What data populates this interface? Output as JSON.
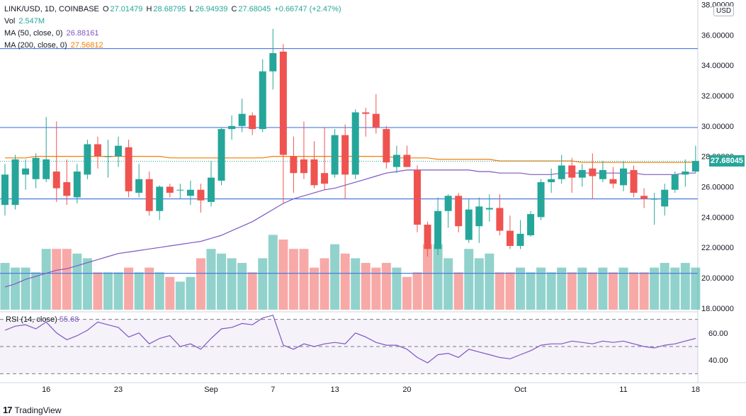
{
  "header": {
    "pair": "LINK/USD, 1D, COINBASE",
    "open_label": "O",
    "open": "27.01479",
    "high_label": "H",
    "high": "28.68795",
    "low_label": "L",
    "low": "26.94939",
    "close_label": "C",
    "close": "27.68045",
    "change": "+0.66747 (+2.47%)",
    "vol_label": "Vol",
    "vol": "2.547M",
    "ma50_label": "MA (50, close, 0)",
    "ma50": "26.88161",
    "ma200_label": "MA (200, close, 0)",
    "ma200": "27.56812"
  },
  "currency_button": "USD",
  "last_price_tag": "27.68045",
  "rsi_label": "RSI (14, close)",
  "rsi_value": "55.68",
  "logo_text": "TradingView",
  "colors": {
    "up": "#26a69a",
    "down": "#ef5350",
    "ma50": "#7e57c2",
    "ma200": "#f57c00",
    "hline": "#4c7be0",
    "rsi": "#7e57c2"
  },
  "chart_data": {
    "type": "candlestick",
    "title": "LINK/USD, 1D, COINBASE",
    "price_axis": {
      "min": 18,
      "max": 38,
      "ticks": [
        "38.00000",
        "36.00000",
        "34.00000",
        "32.00000",
        "30.00000",
        "28.00000",
        "26.00000",
        "24.00000",
        "22.00000",
        "20.00000",
        "18.00000"
      ]
    },
    "time_axis": {
      "ticks": [
        {
          "label": "16",
          "index": 4
        },
        {
          "label": "23",
          "index": 11
        },
        {
          "label": "Sep",
          "index": 20
        },
        {
          "label": "7",
          "index": 26
        },
        {
          "label": "13",
          "index": 32
        },
        {
          "label": "20",
          "index": 39
        },
        {
          "label": "Oct",
          "index": 50
        },
        {
          "label": "11",
          "index": 60
        },
        {
          "label": "18",
          "index": 67
        }
      ]
    },
    "horizontal_lines": [
      35.1,
      29.9,
      25.2,
      20.3
    ],
    "candles": [
      {
        "o": 24.8,
        "h": 27.5,
        "l": 24.1,
        "c": 26.8
      },
      {
        "o": 24.8,
        "h": 28.1,
        "l": 24.5,
        "c": 27.8
      },
      {
        "o": 26.8,
        "h": 27.8,
        "l": 25.8,
        "c": 27.2
      },
      {
        "o": 26.5,
        "h": 28.2,
        "l": 25.9,
        "c": 27.9
      },
      {
        "o": 26.5,
        "h": 30.6,
        "l": 26.3,
        "c": 27.8
      },
      {
        "o": 27.0,
        "h": 30.3,
        "l": 25.0,
        "c": 25.9
      },
      {
        "o": 26.3,
        "h": 27.8,
        "l": 24.8,
        "c": 25.4
      },
      {
        "o": 25.3,
        "h": 27.5,
        "l": 24.9,
        "c": 27.0
      },
      {
        "o": 26.8,
        "h": 29.1,
        "l": 26.5,
        "c": 28.8
      },
      {
        "o": 28.8,
        "h": 29.3,
        "l": 27.2,
        "c": 28.0
      },
      {
        "o": 28.0,
        "h": 29.1,
        "l": 26.6,
        "c": 28.0
      },
      {
        "o": 28.0,
        "h": 29.3,
        "l": 27.3,
        "c": 28.7
      },
      {
        "o": 28.6,
        "h": 29.1,
        "l": 25.3,
        "c": 25.7
      },
      {
        "o": 25.6,
        "h": 27.5,
        "l": 25.3,
        "c": 26.5
      },
      {
        "o": 26.5,
        "h": 27.0,
        "l": 24.1,
        "c": 24.4
      },
      {
        "o": 24.4,
        "h": 26.1,
        "l": 23.8,
        "c": 26.0
      },
      {
        "o": 26.0,
        "h": 26.2,
        "l": 25.3,
        "c": 25.6
      },
      {
        "o": 25.8,
        "h": 26.2,
        "l": 25.2,
        "c": 25.8
      },
      {
        "o": 25.4,
        "h": 26.4,
        "l": 24.8,
        "c": 25.8
      },
      {
        "o": 25.8,
        "h": 26.2,
        "l": 24.3,
        "c": 25.1
      },
      {
        "o": 25.0,
        "h": 27.7,
        "l": 24.7,
        "c": 26.6
      },
      {
        "o": 26.4,
        "h": 29.9,
        "l": 26.1,
        "c": 29.8
      },
      {
        "o": 29.8,
        "h": 30.7,
        "l": 29.1,
        "c": 30.0
      },
      {
        "o": 30.0,
        "h": 31.8,
        "l": 29.6,
        "c": 30.8
      },
      {
        "o": 30.7,
        "h": 30.9,
        "l": 29.4,
        "c": 29.8
      },
      {
        "o": 29.8,
        "h": 34.4,
        "l": 29.6,
        "c": 33.6
      },
      {
        "o": 33.6,
        "h": 36.4,
        "l": 32.4,
        "c": 34.8
      },
      {
        "o": 34.9,
        "h": 35.4,
        "l": 24.9,
        "c": 28.1
      },
      {
        "o": 28.0,
        "h": 29.3,
        "l": 25.6,
        "c": 26.9
      },
      {
        "o": 27.8,
        "h": 30.3,
        "l": 26.5,
        "c": 26.9
      },
      {
        "o": 27.8,
        "h": 29.0,
        "l": 25.9,
        "c": 26.1
      },
      {
        "o": 26.9,
        "h": 29.9,
        "l": 25.8,
        "c": 26.2
      },
      {
        "o": 26.8,
        "h": 29.8,
        "l": 26.6,
        "c": 29.4
      },
      {
        "o": 29.4,
        "h": 30.1,
        "l": 25.2,
        "c": 26.8
      },
      {
        "o": 26.8,
        "h": 31.1,
        "l": 26.5,
        "c": 30.9
      },
      {
        "o": 30.9,
        "h": 31.2,
        "l": 29.3,
        "c": 30.8
      },
      {
        "o": 30.8,
        "h": 32.1,
        "l": 29.5,
        "c": 29.9
      },
      {
        "o": 29.8,
        "h": 30.0,
        "l": 27.2,
        "c": 27.6
      },
      {
        "o": 27.3,
        "h": 28.7,
        "l": 26.9,
        "c": 28.1
      },
      {
        "o": 28.1,
        "h": 28.7,
        "l": 27.3,
        "c": 27.3
      },
      {
        "o": 27.1,
        "h": 27.4,
        "l": 23.0,
        "c": 23.5
      },
      {
        "o": 23.5,
        "h": 23.7,
        "l": 21.4,
        "c": 21.9
      },
      {
        "o": 21.9,
        "h": 25.3,
        "l": 21.5,
        "c": 24.4
      },
      {
        "o": 24.4,
        "h": 25.5,
        "l": 23.3,
        "c": 25.4
      },
      {
        "o": 25.4,
        "h": 25.6,
        "l": 23.0,
        "c": 23.4
      },
      {
        "o": 22.5,
        "h": 25.2,
        "l": 22.3,
        "c": 24.5
      },
      {
        "o": 23.4,
        "h": 25.3,
        "l": 22.3,
        "c": 24.7
      },
      {
        "o": 24.5,
        "h": 25.5,
        "l": 23.7,
        "c": 24.6
      },
      {
        "o": 24.6,
        "h": 25.5,
        "l": 22.8,
        "c": 23.1
      },
      {
        "o": 23.1,
        "h": 24.1,
        "l": 21.9,
        "c": 22.1
      },
      {
        "o": 22.1,
        "h": 23.8,
        "l": 21.9,
        "c": 22.9
      },
      {
        "o": 22.8,
        "h": 24.4,
        "l": 22.7,
        "c": 24.2
      },
      {
        "o": 24.0,
        "h": 26.5,
        "l": 23.8,
        "c": 26.3
      },
      {
        "o": 26.3,
        "h": 27.2,
        "l": 25.6,
        "c": 26.5
      },
      {
        "o": 26.5,
        "h": 28.1,
        "l": 26.2,
        "c": 27.4
      },
      {
        "o": 27.4,
        "h": 27.9,
        "l": 25.6,
        "c": 26.6
      },
      {
        "o": 26.6,
        "h": 27.5,
        "l": 26.0,
        "c": 27.1
      },
      {
        "o": 27.2,
        "h": 28.2,
        "l": 25.2,
        "c": 26.7
      },
      {
        "o": 26.5,
        "h": 27.7,
        "l": 26.3,
        "c": 27.1
      },
      {
        "o": 26.5,
        "h": 27.3,
        "l": 25.9,
        "c": 26.2
      },
      {
        "o": 26.1,
        "h": 27.7,
        "l": 25.7,
        "c": 27.2
      },
      {
        "o": 27.1,
        "h": 27.4,
        "l": 25.3,
        "c": 25.6
      },
      {
        "o": 25.4,
        "h": 25.9,
        "l": 24.6,
        "c": 25.2
      },
      {
        "o": 25.2,
        "h": 25.6,
        "l": 23.5,
        "c": 25.2
      },
      {
        "o": 24.7,
        "h": 26.2,
        "l": 24.1,
        "c": 25.8
      },
      {
        "o": 25.8,
        "h": 27.0,
        "l": 25.6,
        "c": 26.8
      },
      {
        "o": 26.8,
        "h": 27.8,
        "l": 26.0,
        "c": 27.0
      },
      {
        "o": 27.0,
        "h": 28.7,
        "l": 26.9,
        "c": 27.7
      }
    ],
    "volume": [
      10,
      9,
      9,
      8,
      13,
      13,
      13,
      12,
      11,
      8,
      8,
      8,
      9,
      8,
      9,
      8,
      7,
      6,
      7,
      11,
      13,
      12,
      11,
      10,
      8,
      11,
      16,
      15,
      13,
      13,
      9,
      11,
      14,
      12,
      11,
      10,
      9,
      10,
      9,
      7,
      8,
      14,
      14,
      11,
      8,
      13,
      11,
      12,
      8,
      8,
      9,
      8,
      9,
      8,
      9,
      8,
      9,
      8,
      9,
      8,
      9,
      8,
      8,
      9,
      10,
      9,
      10,
      9
    ],
    "ma50": [
      19.4,
      19.6,
      19.9,
      20.1,
      20.3,
      20.5,
      20.6,
      20.8,
      21.0,
      21.2,
      21.4,
      21.6,
      21.7,
      21.8,
      21.9,
      22.0,
      22.1,
      22.2,
      22.3,
      22.4,
      22.6,
      22.8,
      23.1,
      23.4,
      23.7,
      24.1,
      24.5,
      24.9,
      25.2,
      25.4,
      25.6,
      25.8,
      25.9,
      26.1,
      26.3,
      26.5,
      26.7,
      26.9,
      27.0,
      27.1,
      27.1,
      27.1,
      27.1,
      27.1,
      27.1,
      27.1,
      27.0,
      27.0,
      26.9,
      26.9,
      26.9,
      26.8,
      26.8,
      26.8,
      26.9,
      26.9,
      26.9,
      26.9,
      26.9,
      26.9,
      26.9,
      26.9,
      26.8,
      26.8,
      26.8,
      26.8,
      26.9,
      26.9
    ],
    "ma200": [
      27.9,
      27.9,
      27.9,
      28.0,
      28.0,
      28.0,
      28.0,
      28.0,
      28.0,
      28.0,
      28.0,
      28.0,
      28.0,
      28.0,
      28.0,
      28.0,
      27.9,
      27.9,
      27.9,
      27.9,
      27.9,
      27.9,
      27.9,
      27.9,
      27.9,
      27.9,
      28.0,
      28.0,
      28.0,
      28.0,
      28.0,
      28.0,
      28.0,
      28.0,
      28.0,
      28.0,
      28.0,
      28.0,
      27.9,
      27.9,
      27.9,
      27.9,
      27.8,
      27.8,
      27.8,
      27.8,
      27.8,
      27.8,
      27.7,
      27.7,
      27.7,
      27.7,
      27.7,
      27.7,
      27.7,
      27.7,
      27.6,
      27.6,
      27.6,
      27.6,
      27.6,
      27.6,
      27.6,
      27.6,
      27.6,
      27.6,
      27.6,
      27.6
    ],
    "rsi": {
      "levels": [
        70,
        50,
        30
      ],
      "ticks": [
        "60.00",
        "40.00"
      ],
      "min": 25,
      "max": 75,
      "values": [
        62,
        65,
        66,
        63,
        68,
        60,
        55,
        58,
        62,
        68,
        66,
        64,
        57,
        60,
        52,
        56,
        58,
        50,
        52,
        48,
        56,
        63,
        64,
        67,
        66,
        71,
        73,
        51,
        48,
        52,
        50,
        52,
        53,
        52,
        60,
        57,
        53,
        51,
        51,
        48,
        42,
        38,
        44,
        45,
        42,
        48,
        46,
        44,
        42,
        41,
        44,
        47,
        51,
        52,
        52,
        54,
        53,
        52,
        54,
        53,
        54,
        52,
        50,
        49,
        51,
        52,
        54,
        56
      ]
    }
  }
}
